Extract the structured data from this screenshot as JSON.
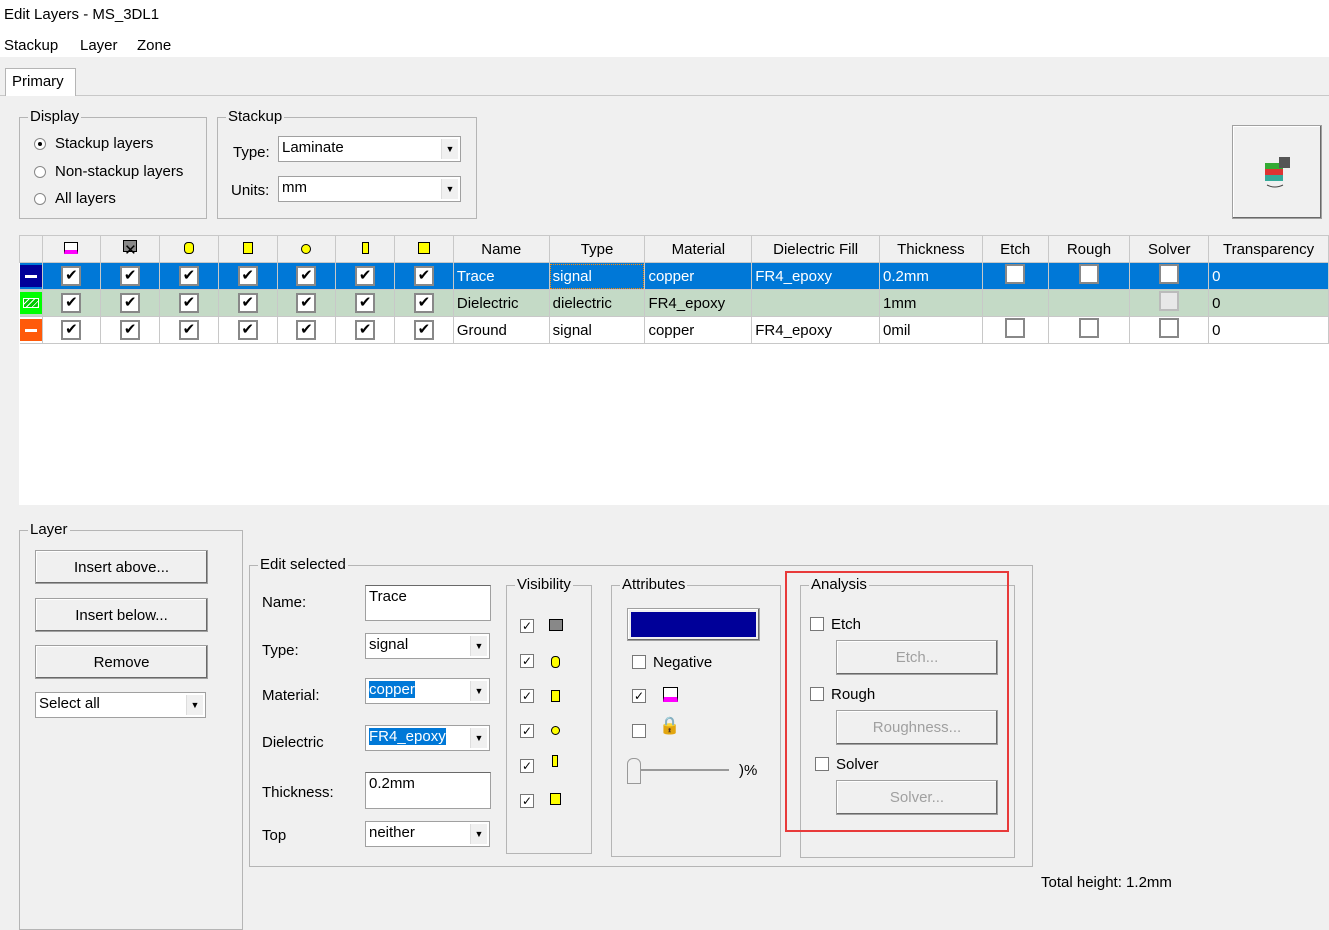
{
  "window": {
    "title": "Edit Layers - MS_3DL1"
  },
  "menu": [
    "Stackup",
    "Layer",
    "Zone"
  ],
  "tabs": [
    {
      "label": "Primary",
      "active": true
    }
  ],
  "display": {
    "label": "Display",
    "options": [
      {
        "label": "Stackup layers",
        "checked": true
      },
      {
        "label": "Non-stackup layers",
        "checked": false
      },
      {
        "label": "All layers",
        "checked": false
      }
    ]
  },
  "stackup": {
    "label": "Stackup",
    "type_label": "Type:",
    "type_value": "Laminate",
    "units_label": "Units:",
    "units_value": "mm"
  },
  "grid": {
    "icon_columns": [
      "dielectric-icon",
      "via-icon",
      "pad-icon",
      "trace-icon",
      "hole-icon",
      "component-icon",
      "pin-icon"
    ],
    "columns": [
      "Name",
      "Type",
      "Material",
      "Dielectric Fill",
      "Thickness",
      "Etch",
      "Rough",
      "Solver",
      "Transparency"
    ],
    "rows": [
      {
        "color": "#000099",
        "name": "Trace",
        "type": "signal",
        "material": "copper",
        "fill": "FR4_epoxy",
        "thickness": "0.2mm",
        "transparency": "0",
        "selected": true
      },
      {
        "color": "#00ff00",
        "name": "Dielectric",
        "type": "dielectric",
        "material": "FR4_epoxy",
        "fill": "",
        "thickness": "1mm",
        "transparency": "0"
      },
      {
        "color": "#ff5a0a",
        "name": "Ground",
        "type": "signal",
        "material": "copper",
        "fill": "FR4_epoxy",
        "thickness": "0mil",
        "transparency": "0"
      }
    ]
  },
  "layer": {
    "label": "Layer",
    "insert_above": "Insert above...",
    "insert_below": "Insert below...",
    "remove": "Remove",
    "select_all": "Select all"
  },
  "edit": {
    "label": "Edit selected",
    "name_label": "Name:",
    "name_value": "Trace",
    "type_label": "Type:",
    "type_value": "signal",
    "material_label": "Material:",
    "material_value": "copper",
    "dielectric_label": "Dielectric",
    "dielectric_value": "FR4_epoxy",
    "thickness_label": "Thickness:",
    "thickness_value": "0.2mm",
    "top_label": "Top",
    "top_value": "neither"
  },
  "visibility": {
    "label": "Visibility"
  },
  "attributes": {
    "label": "Attributes",
    "color": "#000099",
    "negative": "Negative",
    "transparency_suffix": ")%",
    "transparency": 0
  },
  "analysis": {
    "label": "Analysis",
    "etch": "Etch",
    "etch_button": "Etch...",
    "rough": "Rough",
    "rough_button": "Roughness...",
    "solver": "Solver",
    "solver_button": "Solver...",
    "highlight_color": "#e83a3a"
  },
  "footer": {
    "total_height": "Total height: 1.2mm"
  }
}
